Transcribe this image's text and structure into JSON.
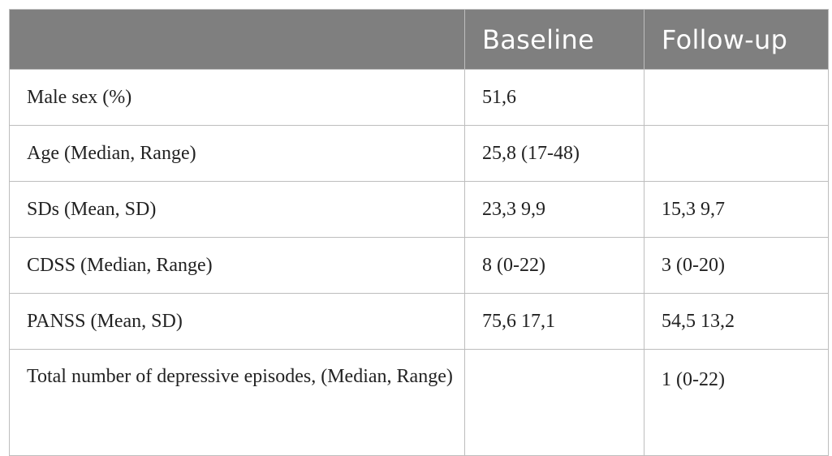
{
  "table": {
    "headers": [
      "",
      "Baseline",
      "Follow-up"
    ],
    "rows": [
      [
        "Male sex (%)",
        "51,6",
        ""
      ],
      [
        "Age (Median, Range)",
        "25,8 (17-48)",
        ""
      ],
      [
        "SDs (Mean, SD)",
        "23,3 9,9",
        "15,3 9,7"
      ],
      [
        "CDSS (Median, Range)",
        "8 (0-22)",
        "3 (0-20)"
      ],
      [
        "PANSS (Mean, SD)",
        "75,6 17,1",
        "54,5 13,2"
      ],
      [
        "Total number of depressive episodes, (Median, Range)",
        "",
        "1 (0-22)"
      ]
    ]
  }
}
